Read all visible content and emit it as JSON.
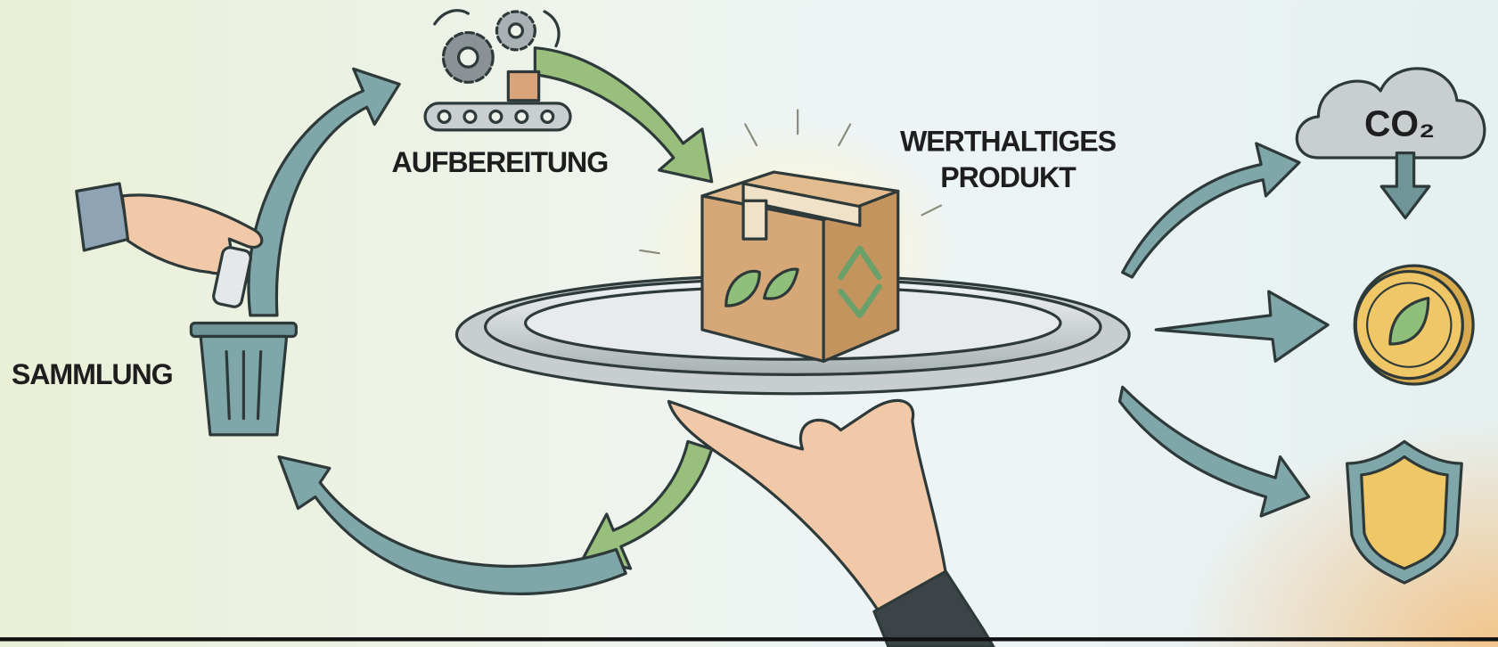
{
  "nodes": [
    {
      "label": "SAMMLUNG"
    },
    {
      "label": "AUFBEREITUNG"
    },
    {
      "label": [
        "WERTHALTIGES",
        "PRODUKT"
      ]
    },
    {
      "label": "CO₂"
    }
  ]
}
